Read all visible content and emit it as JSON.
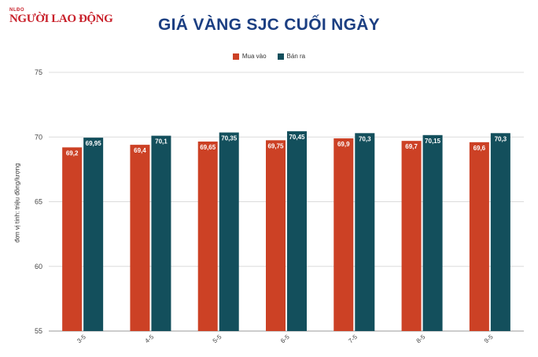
{
  "logo": {
    "top_text": "NLĐO",
    "main_text": "NGƯỜI LAO ĐỘNG"
  },
  "chart_data": {
    "type": "bar",
    "title": "GIÁ VÀNG SJC CUỐI NGÀY",
    "ylabel": "đơn vị tính: triệu đồng/lượng",
    "xlabel": "",
    "categories": [
      "3-5",
      "4-5",
      "5-5",
      "6-5",
      "7-5",
      "8-5",
      "9-5"
    ],
    "series": [
      {
        "name": "Mua vào",
        "color": "#cc4125",
        "values": [
          69.2,
          69.4,
          69.65,
          69.75,
          69.9,
          69.7,
          69.6
        ],
        "labels": [
          "69,2",
          "69,4",
          "69,65",
          "69,75",
          "69,9",
          "69,7",
          "69,6"
        ]
      },
      {
        "name": "Bán ra",
        "color": "#134f5c",
        "values": [
          69.95,
          70.1,
          70.35,
          70.45,
          70.3,
          70.15,
          70.3
        ],
        "labels": [
          "69,95",
          "70,1",
          "70,35",
          "70,45",
          "70,3",
          "70,15",
          "70,3"
        ]
      }
    ],
    "ylim": [
      55,
      75
    ],
    "yticks": [
      55,
      60,
      65,
      70,
      75
    ],
    "grid": true,
    "legend_position": "top"
  }
}
